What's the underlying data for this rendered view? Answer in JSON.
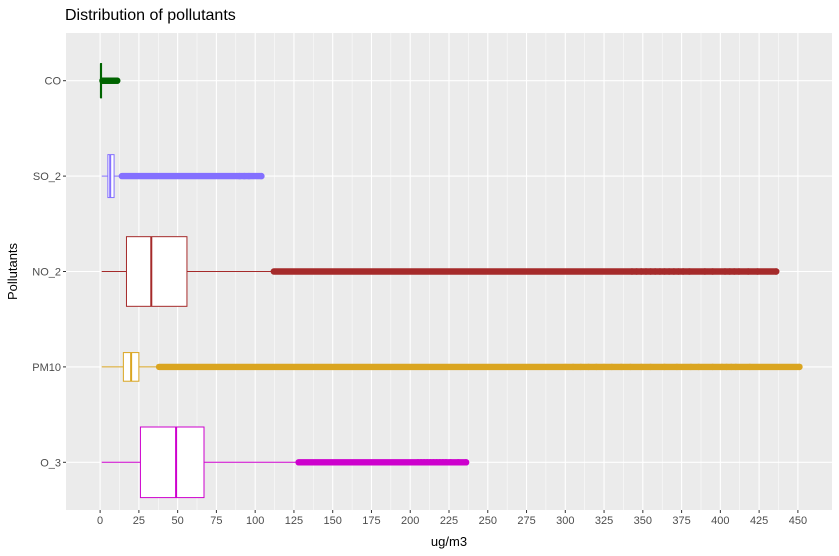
{
  "chart_data": {
    "type": "boxplot",
    "orientation": "horizontal",
    "title": "Distribution of pollutants",
    "xlabel": "ug/m3",
    "ylabel": "Pollutants",
    "xlim": [
      -22,
      472
    ],
    "xticks": [
      0,
      25,
      50,
      75,
      100,
      125,
      150,
      175,
      200,
      225,
      250,
      275,
      300,
      325,
      350,
      375,
      400,
      425,
      450
    ],
    "xtick_labels": [
      "0",
      "25",
      "50",
      "75",
      "100",
      "125",
      "150",
      "175",
      "200",
      "225",
      "250",
      "275",
      "300",
      "325",
      "350",
      "375",
      "400",
      "425",
      "450"
    ],
    "background": "#ebebeb",
    "grid": true,
    "legend": "none",
    "categories": [
      "CO",
      "SO_2",
      "NO_2",
      "PM10",
      "O_3"
    ],
    "series": [
      {
        "category": "CO",
        "color": "#006400",
        "min": 0.1,
        "q1": 0.3,
        "median": 0.5,
        "q3": 0.8,
        "whisker_high": 1.5,
        "outlier_max": 11,
        "outliers": [
          1.7,
          2.2,
          2.8,
          3.4,
          4,
          4.7,
          5.5,
          6.3,
          7.2,
          8.3,
          9.5,
          11
        ],
        "box_height_factor": 0.36
      },
      {
        "category": "SO_2",
        "color": "#8470ff",
        "min": 1,
        "q1": 5,
        "median": 6.5,
        "q3": 9,
        "whisker_high": 14,
        "outlier_max": 104,
        "outliers": [
          90,
          93,
          96,
          104
        ],
        "box_height_factor": 0.45
      },
      {
        "category": "NO_2",
        "color": "#a52a2a",
        "min": 1,
        "q1": 17,
        "median": 33,
        "q3": 56,
        "whisker_high": 112,
        "outlier_max": 436,
        "outliers": [
          343,
          346,
          349,
          352,
          355,
          358,
          361,
          364,
          367,
          370,
          373,
          376,
          380,
          390,
          395,
          403,
          406,
          409,
          412,
          418,
          424,
          436
        ],
        "box_height_factor": 0.73
      },
      {
        "category": "PM10",
        "color": "#daa520",
        "min": 1,
        "q1": 15,
        "median": 20,
        "q3": 25,
        "whisker_high": 38,
        "outlier_max": 451,
        "outliers": [
          300,
          305,
          310,
          315,
          320,
          325,
          330,
          336,
          342,
          349,
          355,
          364,
          372,
          381,
          386,
          395,
          401,
          404,
          407,
          410,
          419,
          451
        ],
        "box_height_factor": 0.3
      },
      {
        "category": "O_3",
        "color": "#cd00cd",
        "min": 1,
        "q1": 26,
        "median": 49,
        "q3": 67,
        "whisker_high": 128,
        "outlier_max": 236,
        "outliers": [
          205,
          207,
          209,
          211,
          213,
          215,
          217,
          219,
          221,
          223,
          226,
          231,
          236
        ],
        "box_height_factor": 0.74
      }
    ]
  }
}
